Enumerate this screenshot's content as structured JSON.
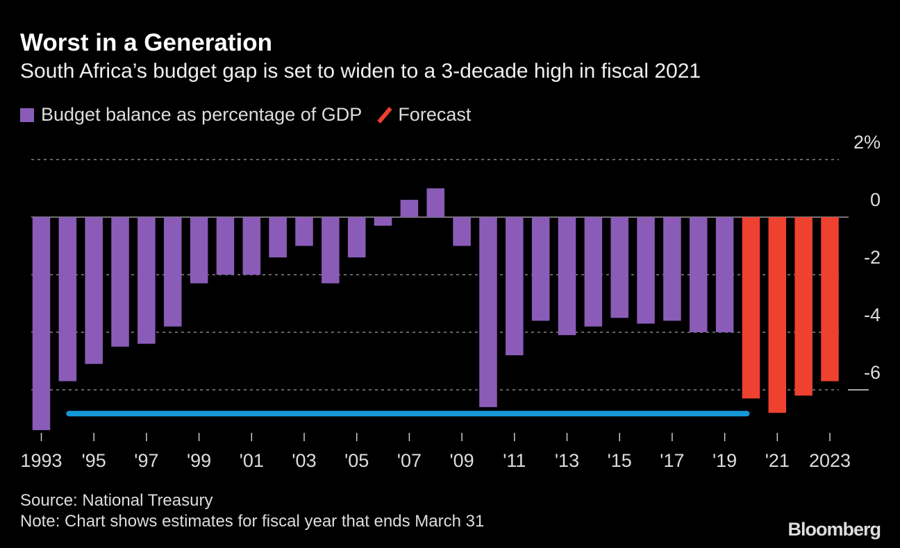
{
  "title": "Worst in a Generation",
  "subtitle": "South Africa’s budget gap is set to widen to a 3-decade high in fiscal 2021",
  "legend": {
    "series": "Budget balance as percentage of GDP",
    "forecast": "Forecast"
  },
  "source": "Source: National Treasury",
  "note": "Note: Chart shows estimates for fiscal year that ends March 31",
  "logo": "Bloomberg",
  "colors": {
    "actual": "#8a5cb8",
    "forecast": "#ee4130",
    "annotation_line": "#1598d8",
    "background": "#000000"
  },
  "chart_data": {
    "type": "bar",
    "title": "Worst in a Generation",
    "subtitle": "South Africa’s budget gap is set to widen to a 3-decade high in fiscal 2021",
    "xlabel": "",
    "ylabel": "",
    "ylim": [
      -7.5,
      2
    ],
    "grid": true,
    "legend_position": "top-left",
    "y_ticks": [
      {
        "value": 2,
        "label": "2%"
      },
      {
        "value": 0,
        "label": "0"
      },
      {
        "value": -2,
        "label": "-2"
      },
      {
        "value": -4,
        "label": "-4"
      },
      {
        "value": -6,
        "label": "-6"
      }
    ],
    "x_tick_labels": [
      {
        "year": 1993,
        "label": "1993"
      },
      {
        "year": 1995,
        "label": "'95"
      },
      {
        "year": 1997,
        "label": "'97"
      },
      {
        "year": 1999,
        "label": "'99"
      },
      {
        "year": 2001,
        "label": "'01"
      },
      {
        "year": 2003,
        "label": "'03"
      },
      {
        "year": 2005,
        "label": "'05"
      },
      {
        "year": 2007,
        "label": "'07"
      },
      {
        "year": 2009,
        "label": "'09"
      },
      {
        "year": 2011,
        "label": "'11"
      },
      {
        "year": 2013,
        "label": "'13"
      },
      {
        "year": 2015,
        "label": "'15"
      },
      {
        "year": 2017,
        "label": "'17"
      },
      {
        "year": 2019,
        "label": "'19"
      },
      {
        "year": 2021,
        "label": "'21"
      },
      {
        "year": 2023,
        "label": "2023"
      }
    ],
    "years": [
      1993,
      1994,
      1995,
      1996,
      1997,
      1998,
      1999,
      2000,
      2001,
      2002,
      2003,
      2004,
      2005,
      2006,
      2007,
      2008,
      2009,
      2010,
      2011,
      2012,
      2013,
      2014,
      2015,
      2016,
      2017,
      2018,
      2019,
      2020,
      2021,
      2022,
      2023
    ],
    "series": [
      {
        "name": "Budget balance as percentage of GDP",
        "values": [
          -7.4,
          -5.7,
          -5.1,
          -4.5,
          -4.4,
          -3.8,
          -2.3,
          -2.0,
          -2.0,
          -1.4,
          -1.0,
          -2.3,
          -1.4,
          -0.3,
          0.6,
          1.0,
          -1.0,
          -6.6,
          -4.8,
          -3.6,
          -4.1,
          -3.8,
          -3.5,
          -3.7,
          -3.6,
          -4.0,
          -4.0,
          null,
          null,
          null,
          null
        ]
      },
      {
        "name": "Forecast",
        "values": [
          null,
          null,
          null,
          null,
          null,
          null,
          null,
          null,
          null,
          null,
          null,
          null,
          null,
          null,
          null,
          null,
          null,
          null,
          null,
          null,
          null,
          null,
          null,
          null,
          null,
          null,
          null,
          -6.3,
          -6.8,
          -6.2,
          -5.7
        ]
      }
    ],
    "annotations": [
      {
        "type": "reference-line",
        "value": -6.8,
        "from": 1994,
        "to": 2020
      }
    ]
  }
}
